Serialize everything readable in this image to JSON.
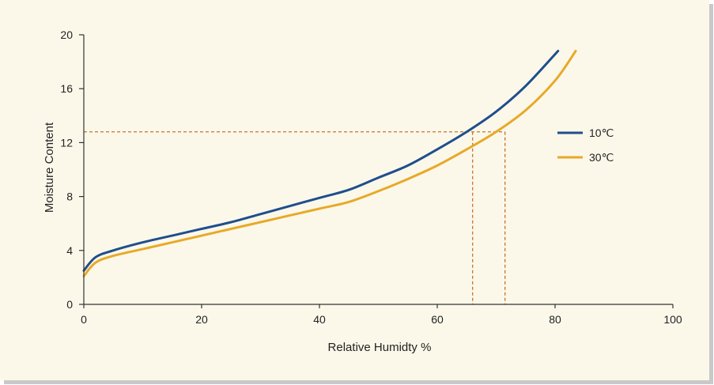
{
  "chart_data": {
    "type": "line",
    "title": "",
    "xlabel": "Relative Humidty %",
    "ylabel": "Moisture Content",
    "xlim": [
      0,
      100
    ],
    "ylim": [
      0,
      20
    ],
    "x_ticks": [
      "0",
      "20",
      "40",
      "60",
      "80",
      "100"
    ],
    "y_ticks": [
      "0",
      "4",
      "8",
      "12",
      "16",
      "20"
    ],
    "grid": false,
    "legend_position": "right",
    "series": [
      {
        "name": "10℃",
        "color": "#1f4e8c",
        "x": [
          0,
          2,
          5,
          10,
          15,
          20,
          25,
          30,
          35,
          40,
          45,
          50,
          55,
          60,
          65,
          70,
          75,
          80.5
        ],
        "y": [
          2.5,
          3.5,
          4.0,
          4.6,
          5.1,
          5.6,
          6.1,
          6.7,
          7.3,
          7.9,
          8.5,
          9.4,
          10.3,
          11.5,
          12.8,
          14.3,
          16.2,
          18.8
        ]
      },
      {
        "name": "30℃",
        "color": "#e8a928",
        "x": [
          0,
          2,
          5,
          10,
          15,
          20,
          25,
          30,
          35,
          40,
          45,
          50,
          55,
          60,
          65,
          70,
          75,
          80,
          83.5
        ],
        "y": [
          2.1,
          3.1,
          3.6,
          4.1,
          4.6,
          5.1,
          5.6,
          6.1,
          6.6,
          7.1,
          7.6,
          8.4,
          9.3,
          10.3,
          11.5,
          12.8,
          14.4,
          16.6,
          18.8
        ]
      }
    ],
    "annotations": [
      {
        "type": "hline",
        "y": 12.8,
        "x_end": 71.5,
        "color": "#c8742c",
        "style": "dashed"
      },
      {
        "type": "vline",
        "x": 66,
        "y_end": 12.8,
        "color": "#c8742c",
        "style": "dashed"
      },
      {
        "type": "vline",
        "x": 71.5,
        "y_end": 12.8,
        "color": "#c8742c",
        "style": "dashed"
      }
    ]
  }
}
